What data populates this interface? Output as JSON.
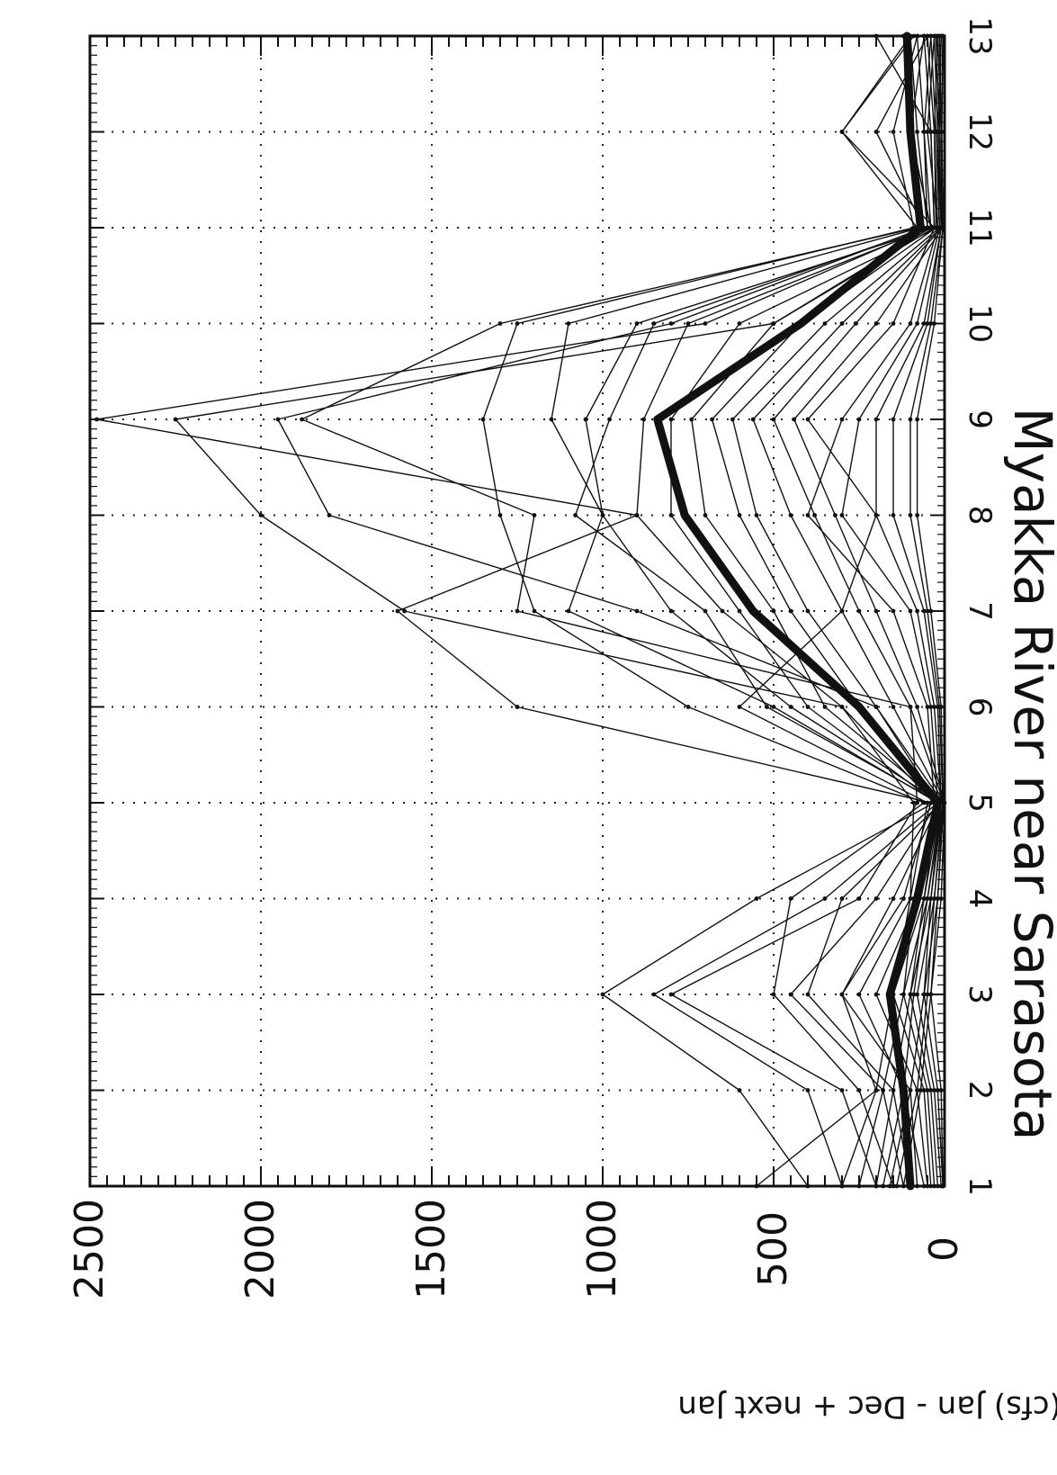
{
  "chart_data": {
    "type": "line",
    "title": "Myakka River near Sarasota",
    "xlabel": "",
    "ylabel": "Mean Monthly Flow (cfs) Jan - Dec + next Jan",
    "xlim": [
      1,
      13
    ],
    "ylim": [
      0,
      2500
    ],
    "x_ticks": [
      "1",
      "2",
      "3",
      "4",
      "5",
      "6",
      "7",
      "8",
      "9",
      "10",
      "11",
      "12",
      "13"
    ],
    "y_ticks": [
      "0",
      "500",
      "1000",
      "1500",
      "2000",
      "2500"
    ],
    "grid": true,
    "orientation": "rotated-90-clockwise",
    "x": [
      1,
      2,
      3,
      4,
      5,
      6,
      7,
      8,
      9,
      10,
      11,
      12,
      13
    ],
    "series": [
      {
        "style": "mean",
        "values": [
          100,
          120,
          160,
          80,
          20,
          250,
          560,
          760,
          840,
          420,
          70,
          100,
          110
        ]
      },
      {
        "values": [
          550,
          200,
          300,
          120,
          40,
          1250,
          1600,
          900,
          2480,
          700,
          50,
          60,
          80
        ]
      },
      {
        "values": [
          400,
          600,
          1000,
          550,
          30,
          300,
          1580,
          2000,
          2250,
          500,
          40,
          100,
          120
        ]
      },
      {
        "values": [
          300,
          400,
          850,
          350,
          20,
          200,
          900,
          1800,
          1950,
          800,
          60,
          200,
          50
        ]
      },
      {
        "values": [
          200,
          300,
          800,
          250,
          80,
          100,
          1250,
          1200,
          1880,
          1300,
          80,
          300,
          100
        ]
      },
      {
        "values": [
          150,
          250,
          500,
          450,
          60,
          750,
          1200,
          1300,
          1350,
          1250,
          90,
          150,
          80
        ]
      },
      {
        "values": [
          120,
          180,
          450,
          200,
          20,
          500,
          1100,
          1000,
          1150,
          1100,
          70,
          100,
          60
        ]
      },
      {
        "values": [
          100,
          150,
          400,
          300,
          10,
          450,
          800,
          1000,
          1050,
          900,
          30,
          300,
          90
        ]
      },
      {
        "values": [
          80,
          100,
          300,
          150,
          15,
          520,
          700,
          1080,
          980,
          850,
          50,
          80,
          100
        ]
      },
      {
        "values": [
          60,
          120,
          250,
          100,
          90,
          300,
          650,
          900,
          880,
          750,
          40,
          60,
          40
        ]
      },
      {
        "values": [
          50,
          80,
          200,
          80,
          25,
          400,
          600,
          800,
          800,
          600,
          20,
          50,
          30
        ]
      },
      {
        "values": [
          40,
          60,
          150,
          60,
          10,
          350,
          500,
          700,
          740,
          500,
          30,
          40,
          200
        ]
      },
      {
        "values": [
          30,
          50,
          120,
          50,
          5,
          250,
          450,
          600,
          680,
          420,
          25,
          30,
          20
        ]
      },
      {
        "values": [
          20,
          40,
          100,
          40,
          5,
          200,
          400,
          550,
          620,
          350,
          15,
          20,
          10
        ]
      },
      {
        "values": [
          10,
          30,
          80,
          30,
          3,
          150,
          300,
          450,
          560,
          300,
          10,
          15,
          10
        ]
      },
      {
        "values": [
          5,
          20,
          60,
          20,
          2,
          100,
          250,
          380,
          500,
          260,
          8,
          10,
          5
        ]
      },
      {
        "values": [
          5,
          10,
          40,
          10,
          0,
          80,
          200,
          320,
          440,
          200,
          5,
          8,
          5
        ]
      },
      {
        "values": [
          300,
          200,
          150,
          100,
          50,
          600,
          300,
          200,
          400,
          150,
          30,
          40,
          60
        ]
      },
      {
        "values": [
          250,
          180,
          120,
          90,
          30,
          50,
          150,
          400,
          300,
          100,
          20,
          30,
          50
        ]
      },
      {
        "values": [
          200,
          150,
          100,
          60,
          20,
          40,
          100,
          300,
          250,
          80,
          15,
          25,
          40
        ]
      },
      {
        "values": [
          180,
          120,
          90,
          50,
          10,
          30,
          80,
          200,
          200,
          60,
          10,
          20,
          30
        ]
      },
      {
        "values": [
          160,
          100,
          60,
          40,
          10,
          20,
          60,
          150,
          150,
          50,
          10,
          15,
          25
        ]
      },
      {
        "values": [
          140,
          80,
          50,
          30,
          5,
          15,
          50,
          100,
          100,
          40,
          5,
          10,
          20
        ]
      },
      {
        "values": [
          120,
          70,
          40,
          20,
          5,
          10,
          40,
          80,
          80,
          30,
          5,
          10,
          15
        ]
      }
    ]
  }
}
